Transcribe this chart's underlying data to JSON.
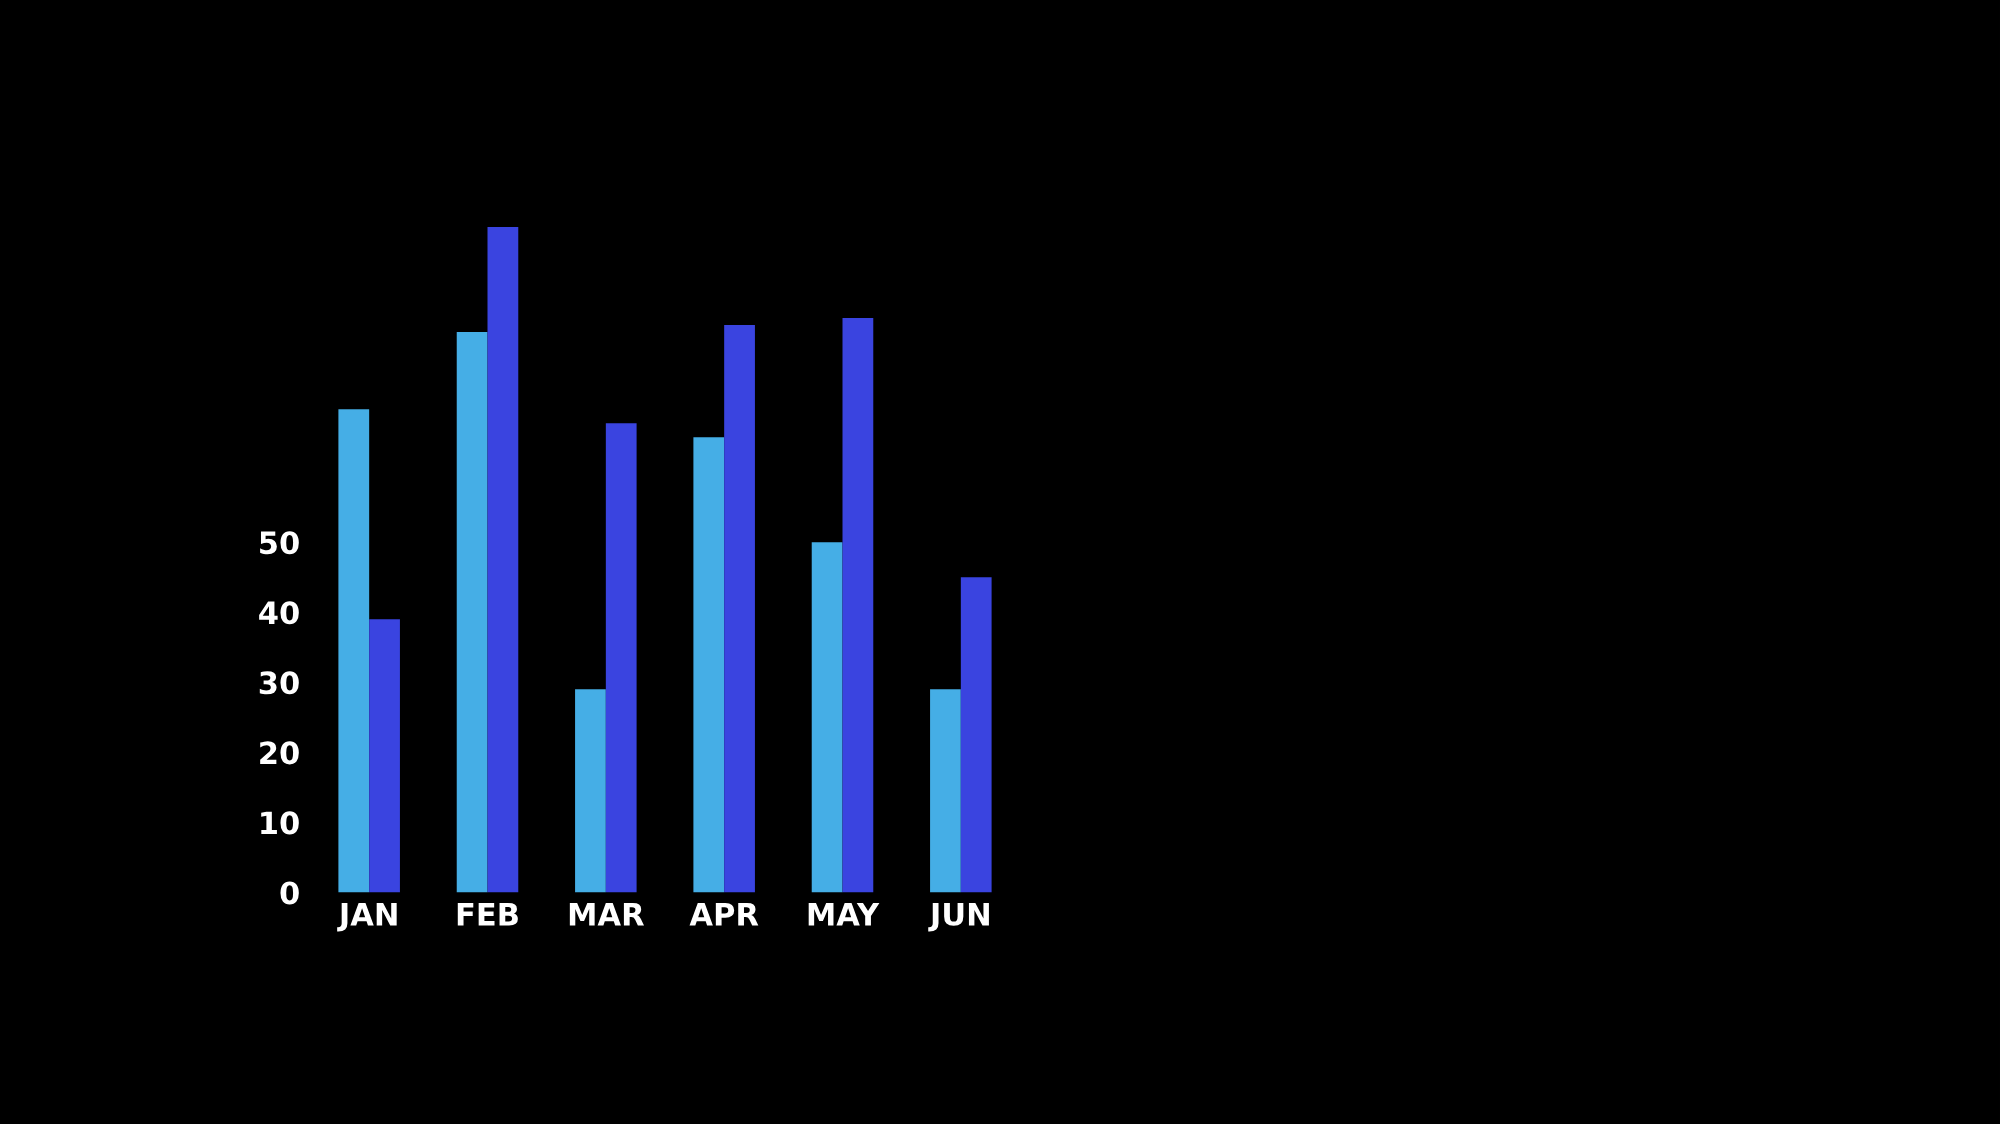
{
  "chart_data": {
    "type": "bar",
    "categories": [
      "JAN",
      "FEB",
      "MAR",
      "APR",
      "MAY",
      "JUN"
    ],
    "series": [
      {
        "color": "#45aee6",
        "values": [
          69,
          80,
          29,
          65,
          50,
          29
        ]
      },
      {
        "color": "#3a44e0",
        "values": [
          39,
          95,
          67,
          81,
          82,
          45
        ]
      }
    ],
    "ylim": [
      0,
      95
    ],
    "yticks": [
      0,
      10,
      20,
      30,
      40,
      50
    ]
  }
}
